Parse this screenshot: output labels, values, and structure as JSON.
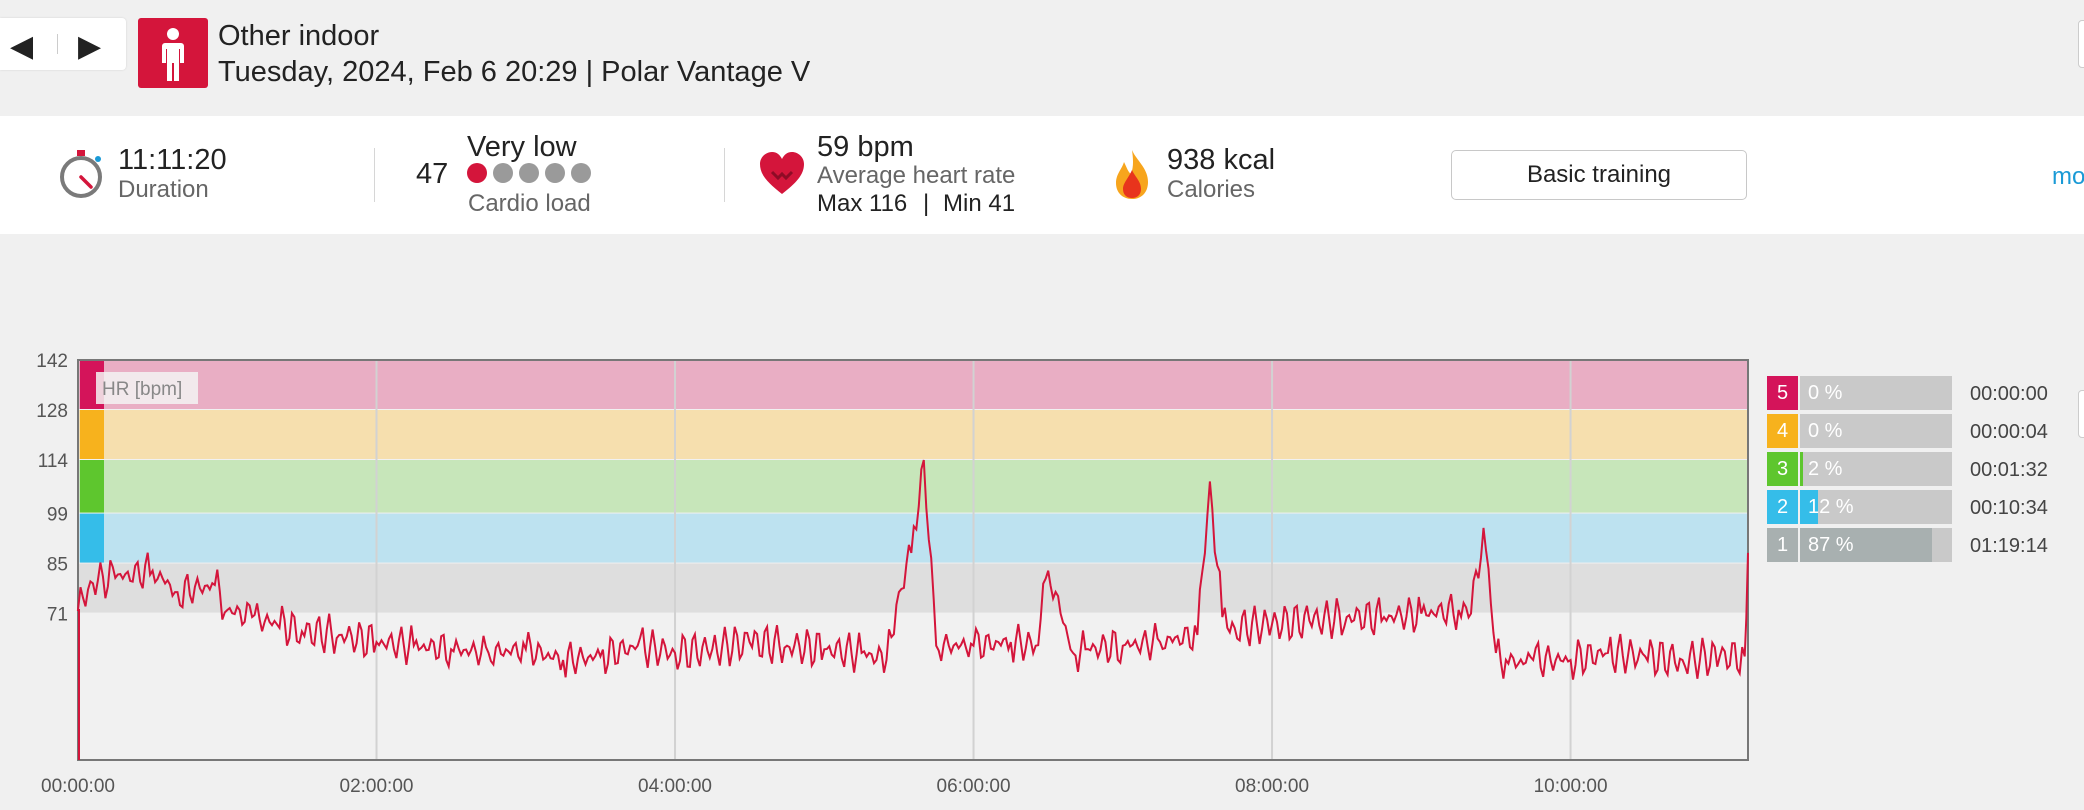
{
  "header": {
    "prev_icon": "◀",
    "next_icon": "▶",
    "sport_icon": "person-icon",
    "title": "Other indoor",
    "subtitle": "Tuesday, 2024, Feb 6 20:29 | Polar Vantage V"
  },
  "summary": {
    "duration": {
      "value": "11:11:20",
      "label": "Duration",
      "icon": "stopwatch-icon"
    },
    "cardio": {
      "score": "47",
      "level": "Very low",
      "label": "Cardio load",
      "dots_total": 5,
      "dots_active": 1
    },
    "heart": {
      "value": "59 bpm",
      "label": "Average heart rate",
      "max": "Max 116",
      "sep": "|",
      "min": "Min 41",
      "icon": "heart-icon"
    },
    "calories": {
      "value": "938 kcal",
      "label": "Calories",
      "icon": "flame-icon"
    },
    "button_label": "Basic training",
    "more_label": "mo"
  },
  "colors": {
    "accent": "#d4153b",
    "zone5": "#d4145a",
    "zone4": "#f7b21d",
    "zone3": "#5ec62e",
    "zone2": "#35bde9",
    "zone1": "#a8b0b0",
    "link": "#1a9ad6"
  },
  "chart_data": {
    "type": "line",
    "title": "HR [bpm]",
    "series": [
      {
        "x": [
          "00:00:00",
          "00:05:00",
          "00:15:00",
          "00:30:00",
          "00:40:00",
          "00:55:00",
          "01:00:00",
          "01:10:00",
          "01:20:00",
          "01:30:00",
          "01:45:00",
          "02:00:00",
          "02:15:00",
          "02:30:00",
          "02:45:00",
          "03:00:00",
          "03:15:00",
          "03:30:00",
          "03:45:00",
          "04:00:00",
          "04:15:00",
          "04:30:00",
          "04:45:00",
          "05:00:00",
          "05:15:00",
          "05:25:00",
          "05:30:00",
          "05:35:00",
          "05:40:00",
          "05:45:00",
          "06:00:00",
          "06:15:00",
          "06:25:00",
          "06:30:00",
          "06:40:00",
          "06:45:00",
          "07:00:00",
          "07:15:00",
          "07:30:00",
          "07:35:00",
          "07:40:00",
          "07:45:00",
          "08:00:00",
          "08:15:00",
          "08:30:00",
          "08:45:00",
          "09:00:00",
          "09:15:00",
          "09:20:00",
          "09:25:00",
          "09:30:00",
          "09:35:00",
          "09:45:00",
          "10:00:00",
          "10:15:00",
          "10:30:00",
          "10:45:00",
          "11:00:00",
          "11:10:00",
          "11:11:20"
        ],
        "y": [
          72,
          80,
          81,
          83,
          77,
          79,
          72,
          70,
          68,
          66,
          65,
          63,
          62,
          61,
          60,
          61,
          58,
          59,
          62,
          60,
          61,
          63,
          62,
          61,
          60,
          58,
          77,
          88,
          114,
          62,
          62,
          63,
          62,
          83,
          60,
          61,
          62,
          63,
          65,
          108,
          70,
          67,
          68,
          69,
          70,
          70,
          71,
          72,
          71,
          95,
          60,
          57,
          58,
          58,
          60,
          59,
          58,
          59,
          59,
          88
        ]
      }
    ],
    "ylim": [
      30,
      142
    ],
    "yticks": [
      "142",
      "128",
      "114",
      "99",
      "85",
      "71"
    ],
    "xticks": [
      "00:00:00",
      "02:00:00",
      "04:00:00",
      "06:00:00",
      "08:00:00",
      "10:00:00"
    ],
    "zones": [
      {
        "zone": "5",
        "pct": "0 %",
        "fill": 0,
        "time": "00:00:00",
        "range": [
          128,
          142
        ]
      },
      {
        "zone": "4",
        "pct": "0 %",
        "fill": 0,
        "time": "00:00:04",
        "range": [
          114,
          128
        ]
      },
      {
        "zone": "3",
        "pct": "2 %",
        "fill": 0.02,
        "time": "00:01:32",
        "range": [
          99,
          114
        ]
      },
      {
        "zone": "2",
        "pct": "12 %",
        "fill": 0.12,
        "time": "00:10:34",
        "range": [
          85,
          99
        ]
      },
      {
        "zone": "1",
        "pct": "87 %",
        "fill": 0.87,
        "time": "01:19:14",
        "range": [
          71,
          85
        ]
      }
    ]
  }
}
